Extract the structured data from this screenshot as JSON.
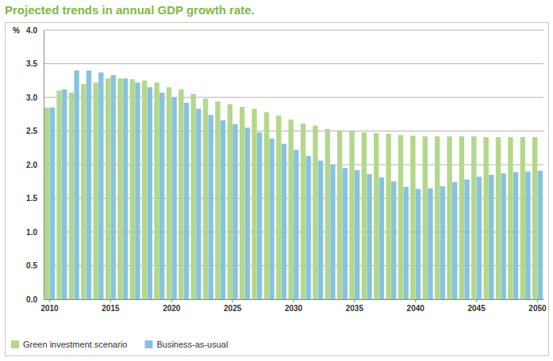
{
  "chart_data": {
    "type": "bar",
    "title": "Projected trends in annual GDP growth rate.",
    "y_label": "%",
    "categories": [
      "2010",
      null,
      null,
      null,
      null,
      "2015",
      null,
      null,
      null,
      null,
      "2020",
      null,
      null,
      null,
      null,
      "2025",
      null,
      null,
      null,
      null,
      "2030",
      null,
      null,
      null,
      null,
      "2035",
      null,
      null,
      null,
      null,
      "2040",
      null,
      null,
      null,
      null,
      "2045",
      null,
      null,
      null,
      null,
      "2050"
    ],
    "series": [
      {
        "name": "Green investment scenario",
        "color": "#b3d88c",
        "values": [
          2.85,
          3.1,
          3.07,
          3.2,
          3.22,
          3.28,
          3.28,
          3.27,
          3.25,
          3.22,
          3.15,
          3.12,
          3.05,
          2.98,
          2.94,
          2.9,
          2.86,
          2.83,
          2.78,
          2.73,
          2.67,
          2.61,
          2.58,
          2.53,
          2.51,
          2.5,
          2.48,
          2.47,
          2.46,
          2.44,
          2.43,
          2.42,
          2.42,
          2.42,
          2.42,
          2.42,
          2.41,
          2.41,
          2.41,
          2.41,
          2.41
        ]
      },
      {
        "name": "Business-as-usual",
        "color": "#88c3dd",
        "values": [
          2.85,
          3.12,
          3.4,
          3.4,
          3.37,
          3.33,
          3.28,
          3.22,
          3.15,
          3.07,
          3.0,
          2.92,
          2.83,
          2.74,
          2.66,
          2.6,
          2.55,
          2.48,
          2.39,
          2.31,
          2.22,
          2.13,
          2.06,
          2.0,
          1.95,
          1.92,
          1.86,
          1.81,
          1.75,
          1.67,
          1.64,
          1.65,
          1.68,
          1.74,
          1.78,
          1.82,
          1.85,
          1.87,
          1.89,
          1.9,
          1.91
        ]
      }
    ],
    "ylim": [
      0,
      4
    ],
    "yticks": [
      {
        "value": 0,
        "label": "0.0"
      },
      0.5,
      {
        "value": 1,
        "label": "1.0"
      },
      1.5,
      {
        "value": 2,
        "label": "2.0"
      },
      2.5,
      {
        "value": 3,
        "label": "3.0"
      },
      3.5,
      {
        "value": 4,
        "label": "4.0"
      }
    ],
    "grid": true,
    "legend": "bottom-left"
  }
}
